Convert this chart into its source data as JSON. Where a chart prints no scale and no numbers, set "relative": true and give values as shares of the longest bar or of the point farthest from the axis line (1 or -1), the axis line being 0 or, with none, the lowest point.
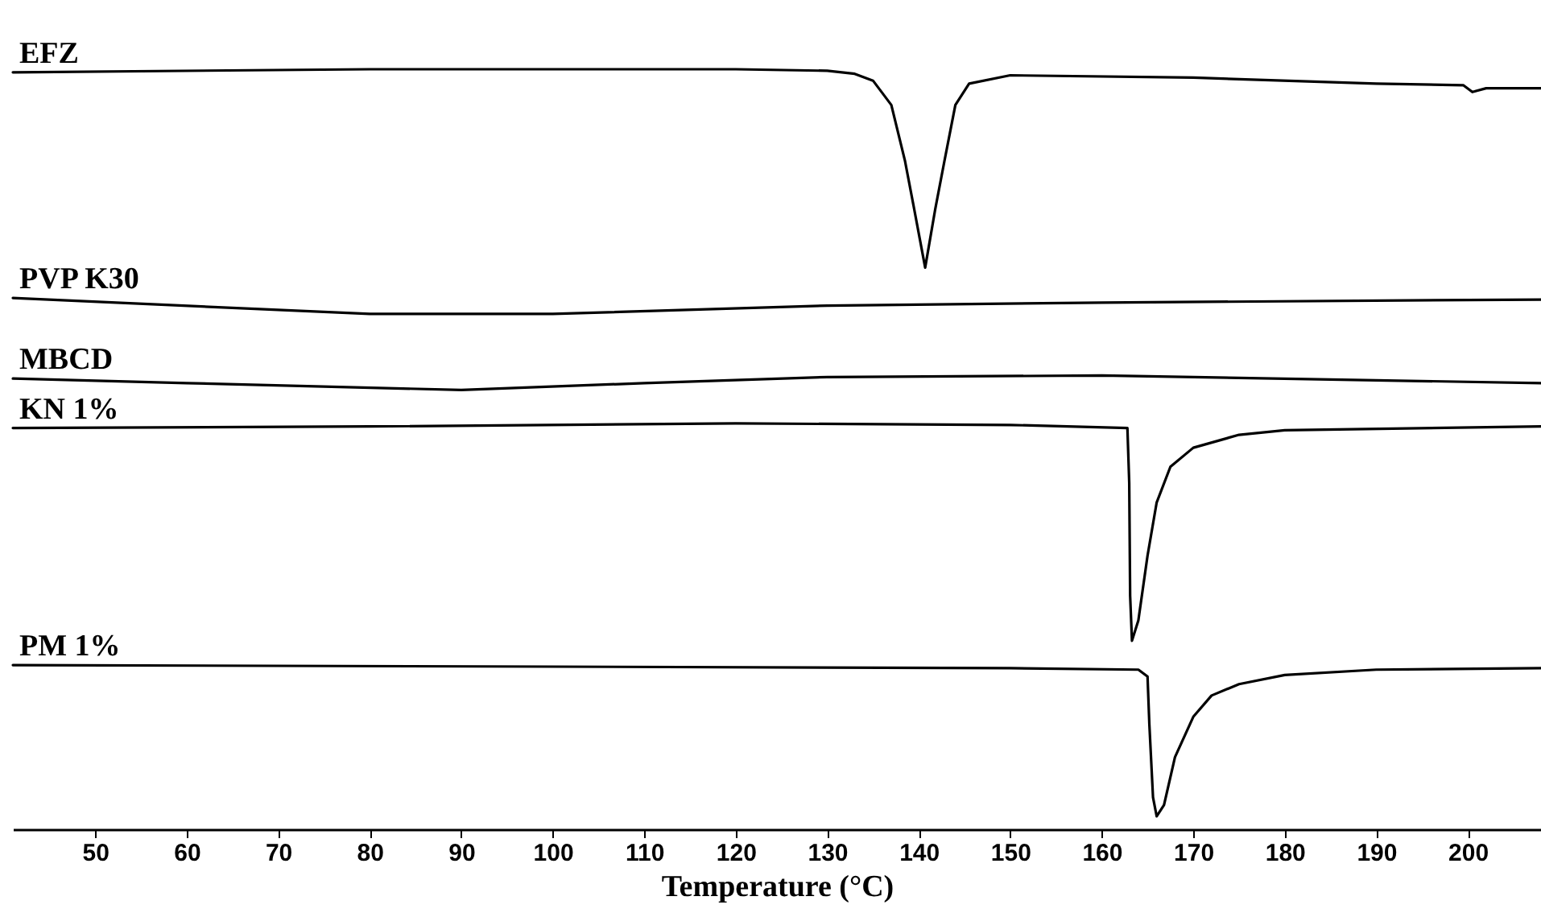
{
  "chart_data": {
    "type": "line",
    "relative": true,
    "xlabel": "Temperature (°C)",
    "xlim": [
      41,
      208
    ],
    "xticks": [
      50,
      60,
      70,
      80,
      90,
      100,
      110,
      120,
      130,
      140,
      150,
      160,
      170,
      180,
      190,
      200
    ],
    "legend": false,
    "grid": false,
    "marker": "none",
    "line_style": "solid",
    "series": [
      {
        "name": "EFZ",
        "color": "#000000",
        "x": [
          41,
          80,
          120,
          130,
          133,
          135,
          137,
          138.5,
          139.5,
          140.7,
          141.8,
          142.8,
          144,
          145.5,
          150,
          170,
          190,
          199.5,
          200.5,
          202,
          208
        ],
        "values": [
          0.996,
          1.0,
          1.0,
          0.998,
          0.994,
          0.985,
          0.953,
          0.879,
          0.816,
          0.739,
          0.816,
          0.879,
          0.953,
          0.981,
          0.992,
          0.989,
          0.981,
          0.979,
          0.97,
          0.975,
          0.975
        ]
      },
      {
        "name": "PVP K30",
        "color": "#000000",
        "x": [
          41,
          80,
          100,
          130,
          160,
          208
        ],
        "values": [
          0.699,
          0.678,
          0.678,
          0.689,
          0.693,
          0.697
        ]
      },
      {
        "name": "MBCD",
        "color": "#000000",
        "x": [
          41,
          60,
          90,
          110,
          130,
          160,
          208
        ],
        "values": [
          0.593,
          0.587,
          0.578,
          0.587,
          0.595,
          0.597,
          0.587
        ]
      },
      {
        "name": "KN 1%",
        "color": "#000000",
        "x": [
          41,
          80,
          120,
          150,
          162.8,
          163.0,
          163.1,
          163.3,
          164,
          165,
          166,
          167.5,
          170,
          175,
          180,
          208
        ],
        "values": [
          0.528,
          0.53,
          0.534,
          0.532,
          0.528,
          0.456,
          0.307,
          0.248,
          0.275,
          0.36,
          0.43,
          0.477,
          0.502,
          0.519,
          0.525,
          0.53
        ]
      },
      {
        "name": "PM 1%",
        "color": "#000000",
        "x": [
          41,
          100,
          150,
          164,
          165,
          165.2,
          165.6,
          166,
          166.8,
          168,
          170,
          172,
          175,
          180,
          190,
          208
        ],
        "values": [
          0.216,
          0.214,
          0.212,
          0.21,
          0.201,
          0.138,
          0.042,
          0.017,
          0.032,
          0.095,
          0.148,
          0.176,
          0.191,
          0.203,
          0.21,
          0.212
        ]
      }
    ]
  }
}
